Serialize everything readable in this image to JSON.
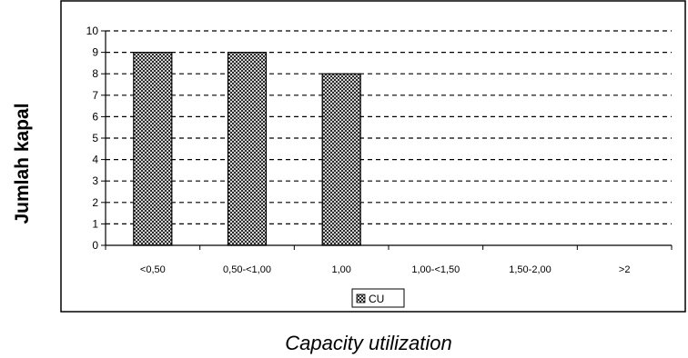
{
  "chart_data": {
    "type": "bar",
    "categories": [
      "<0,50",
      "0,50-<1,00",
      "1,00",
      "1,00-<1,50",
      "1,50-2,00",
      ">2"
    ],
    "series": [
      {
        "name": "CU",
        "values": [
          9,
          9,
          8,
          0,
          0,
          0
        ]
      }
    ],
    "ylabel": "Jumlah kapal",
    "xlabel": "Capacity utilization",
    "ylim": [
      0,
      10
    ],
    "yticks": [
      0,
      1,
      2,
      3,
      4,
      5,
      6,
      7,
      8,
      9,
      10
    ],
    "grid": true,
    "legend_position": "bottom-center",
    "bar_fill": "crosshatch",
    "colors": {
      "bar_pattern": "#000000",
      "background": "#ffffff",
      "frame": "#000000"
    }
  }
}
